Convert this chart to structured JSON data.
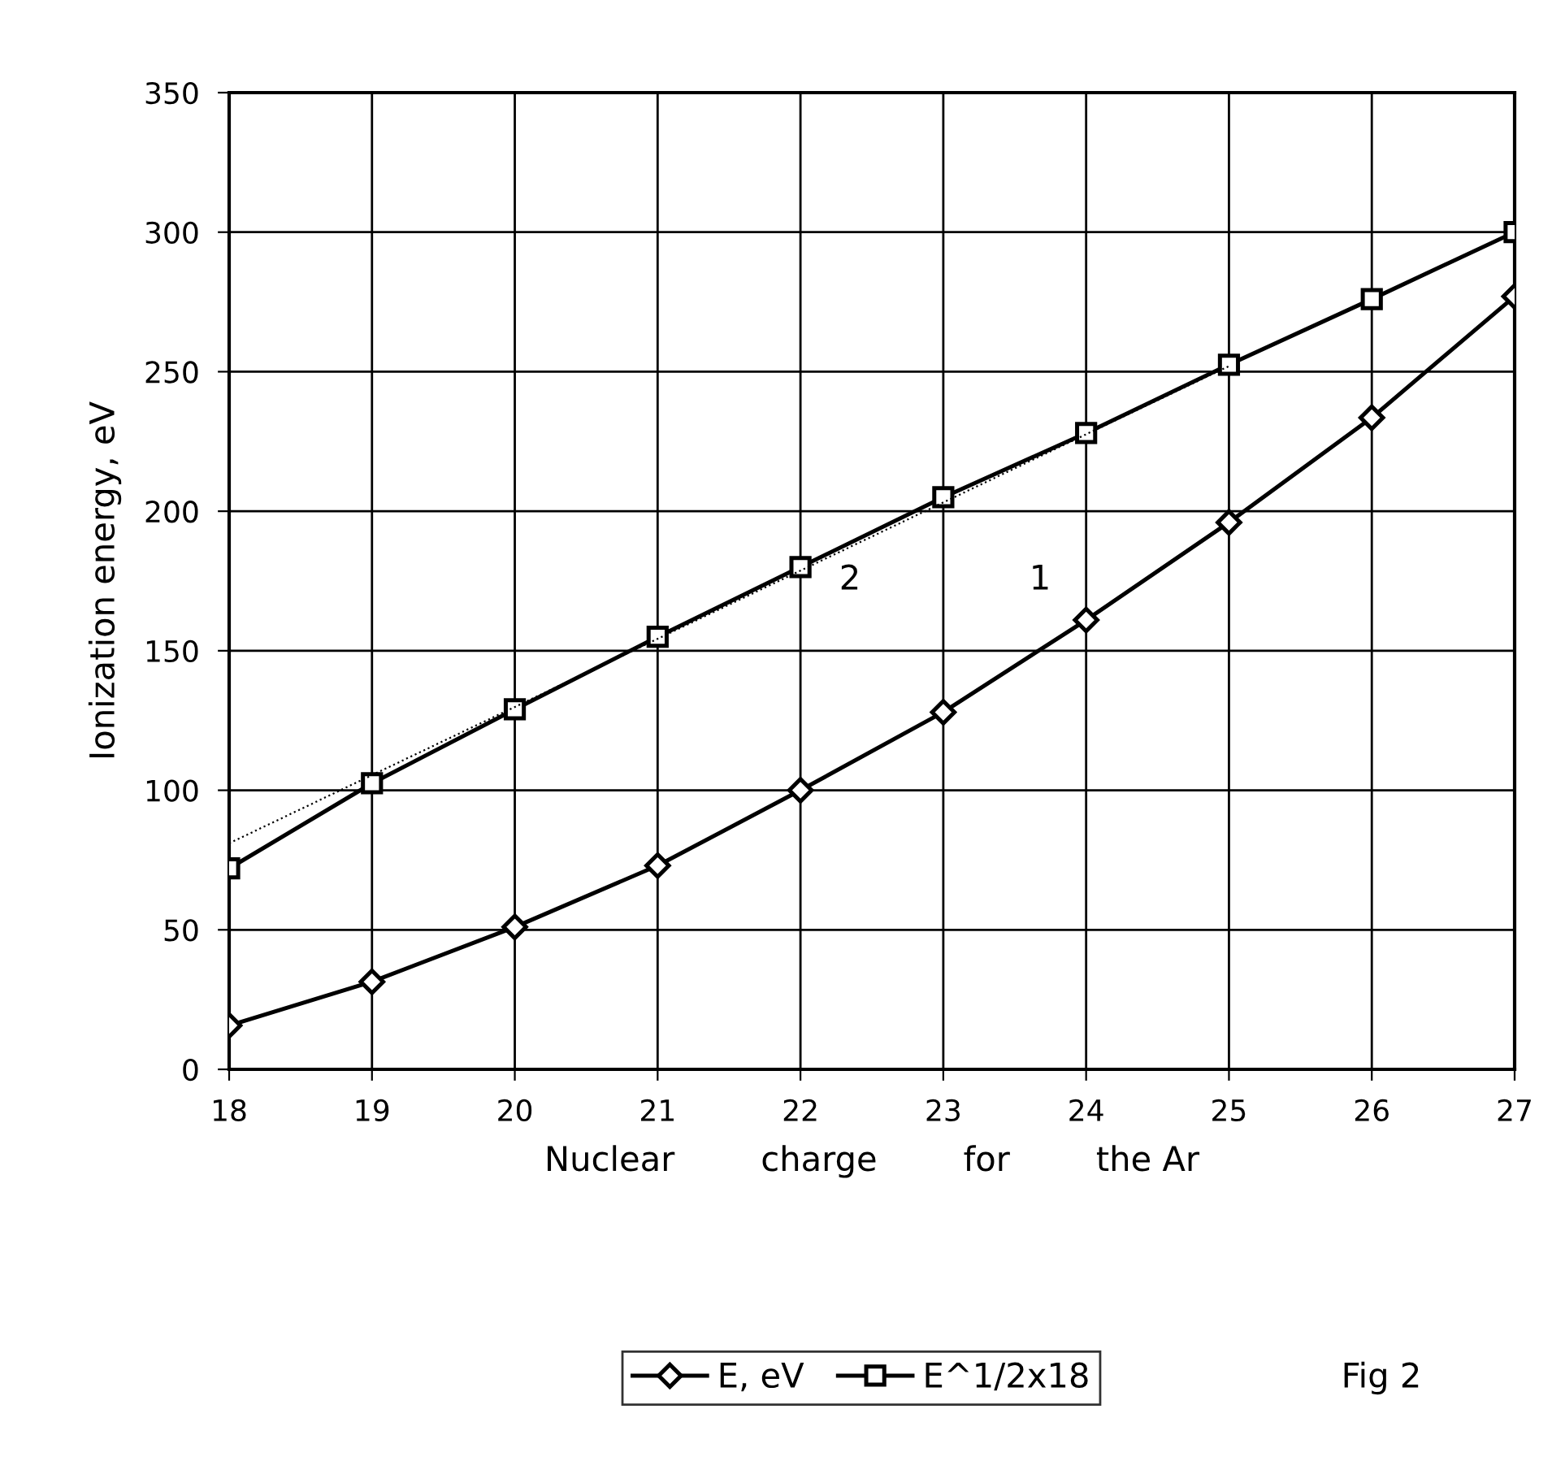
{
  "chart_data": {
    "type": "line",
    "ylabel": "Ionization energy, eV",
    "xlabel": "Nuclear        charge        for        the Ar",
    "x": [
      18,
      19,
      20,
      21,
      22,
      23,
      24,
      25,
      26,
      27
    ],
    "series": [
      {
        "name": "E, eV",
        "color": "#000000",
        "marker": "diamond",
        "values": [
          15.7,
          31.4,
          51,
          73,
          100,
          128,
          161,
          196,
          233.5,
          277
        ]
      },
      {
        "name": "E^1/2x18",
        "color": "#000000",
        "marker": "square",
        "values": [
          72,
          102.5,
          129,
          155,
          180,
          205,
          228,
          252.5,
          276,
          300
        ]
      },
      {
        "type": "line",
        "x": [
          18,
          25
        ],
        "color": "#000000",
        "marker": "none",
        "line_style": "dotted",
        "values": [
          81,
          252
        ]
      }
    ],
    "xlim": [
      18,
      27
    ],
    "xticks": [
      18,
      19,
      20,
      21,
      22,
      23,
      24,
      25,
      26,
      27
    ],
    "ylim": [
      0,
      350
    ],
    "yticks": [
      0,
      50,
      100,
      150,
      200,
      250,
      300,
      350
    ],
    "grid": true,
    "legend": "bottom",
    "annotations": [
      "2",
      "1",
      "Fig 2"
    ]
  }
}
